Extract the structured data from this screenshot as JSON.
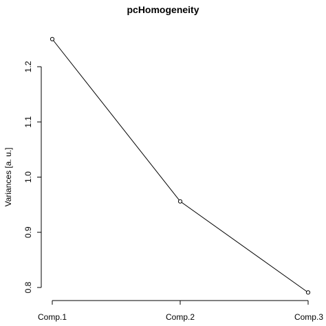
{
  "chart_data": {
    "type": "line",
    "title": "pcHomogeneity",
    "xlabel": "",
    "ylabel": "Variances [a. u.]",
    "categories": [
      "Comp.1",
      "Comp.2",
      "Comp.3"
    ],
    "values": [
      1.25,
      0.956,
      0.791
    ],
    "ylim": [
      0.8,
      1.2
    ],
    "yticks": [
      "0.8",
      "0.9",
      "1.0",
      "1.1",
      "1.2"
    ],
    "markers": "open-circle",
    "grid": false,
    "legend": "none"
  }
}
